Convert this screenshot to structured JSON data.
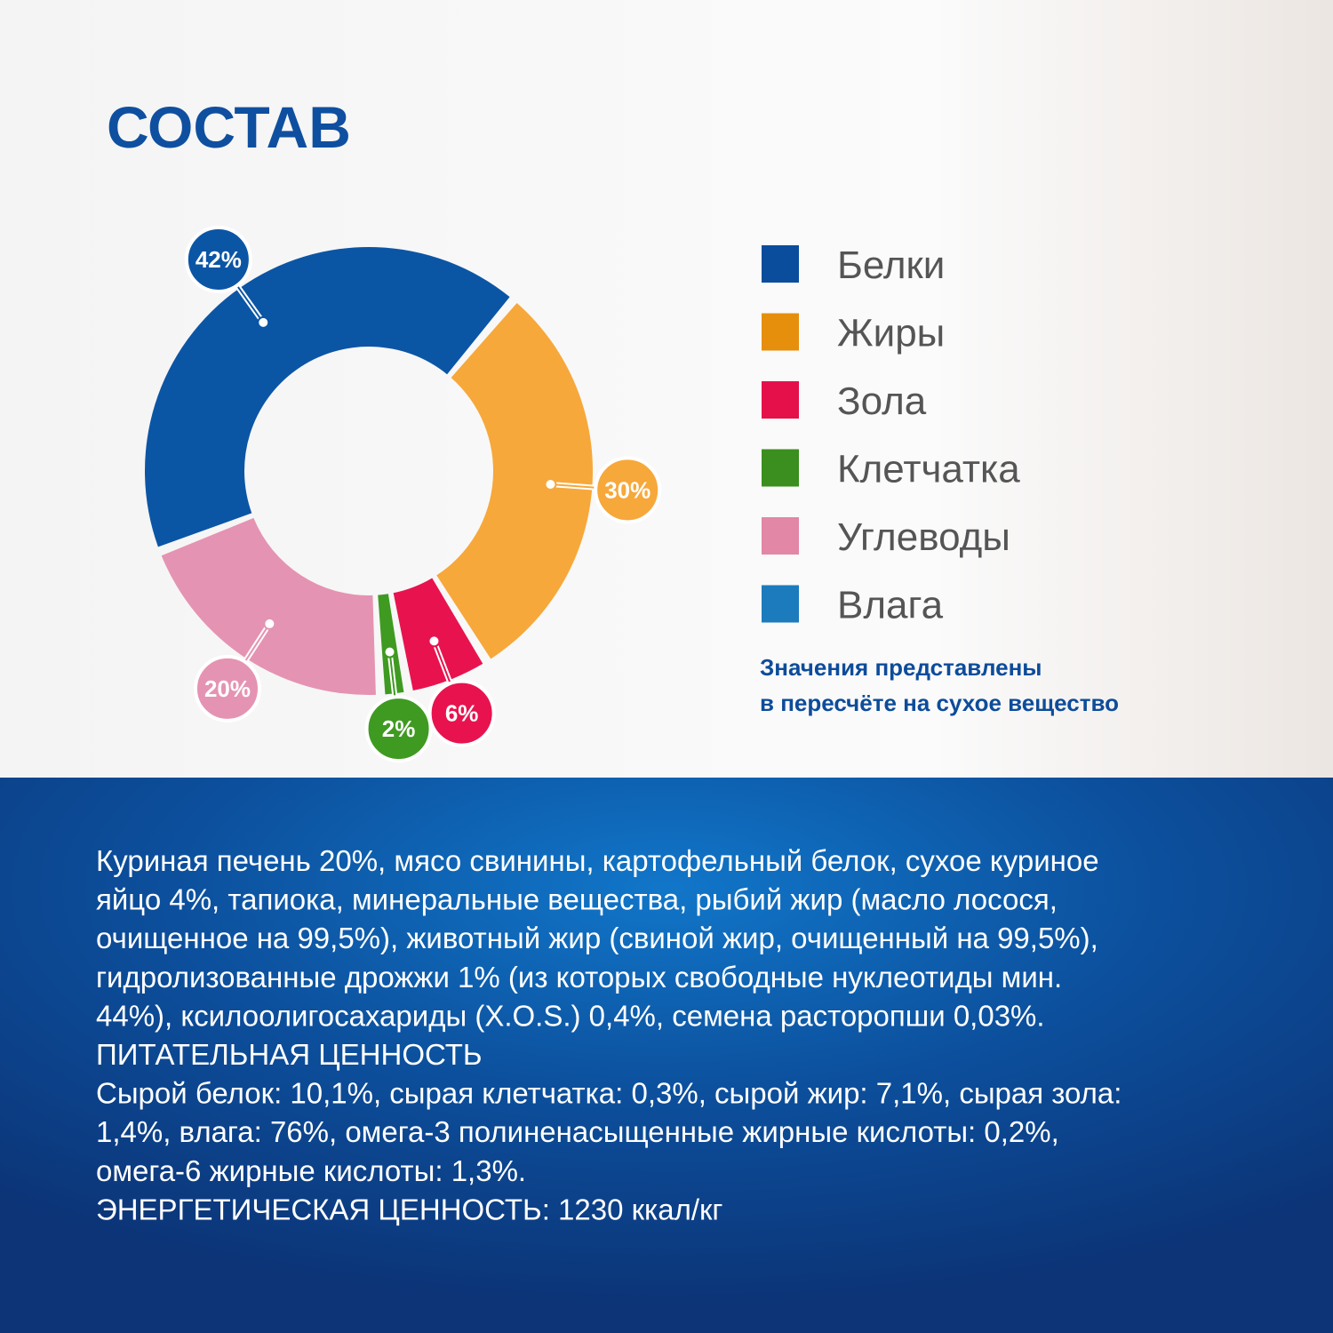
{
  "chart_data": {
    "type": "pie",
    "title": "СОСТАВ",
    "categories": [
      "Белки",
      "Жиры",
      "Зола",
      "Клетчатка",
      "Углеводы",
      "Влага"
    ],
    "values": [
      42,
      30,
      6,
      2,
      20,
      null
    ],
    "value_labels": [
      "42%",
      "30%",
      "6%",
      "2%",
      "20%",
      null
    ],
    "colors": [
      "#0b55a5",
      "#f7a83a",
      "#e8134e",
      "#3f9a21",
      "#e593b2",
      "#1f7fc1"
    ],
    "legend_colors": [
      "#0a4d9c",
      "#e68f0c",
      "#e5104a",
      "#3a8f1e",
      "#e287a6",
      "#1b7bbd"
    ],
    "annotations": [
      "Значения представлены",
      "в пересчёте на сухое вещество"
    ]
  },
  "composition": {
    "lines": [
      "Куриная печень 20%, мясо свинины, картофельный белок, сухое куриное",
      "яйцо 4%, тапиока, минеральные вещества, рыбий жир (масло лосося,",
      "очищенное на 99,5%), животный жир (свиной жир, очищенный на 99,5%),",
      "гидролизованные дрожжи 1% (из которых свободные нуклеотиды мин.",
      "44%), ксилоолигосахариды (X.O.S.) 0,4%, семена расторопши 0,03%.",
      "ПИТАТЕЛЬНАЯ ЦЕННОСТЬ",
      "Сырой белок: 10,1%, сырая клетчатка: 0,3%, сырой жир: 7,1%, сырая зола:",
      "1,4%, влага: 76%, омега-3 полиненасыщенные жирные кислоты: 0,2%,",
      "омега-6 жирные кислоты: 1,3%.",
      "ЭНЕРГЕТИЧЕСКАЯ ЦЕННОСТЬ: 1230 ккал/кг"
    ]
  }
}
